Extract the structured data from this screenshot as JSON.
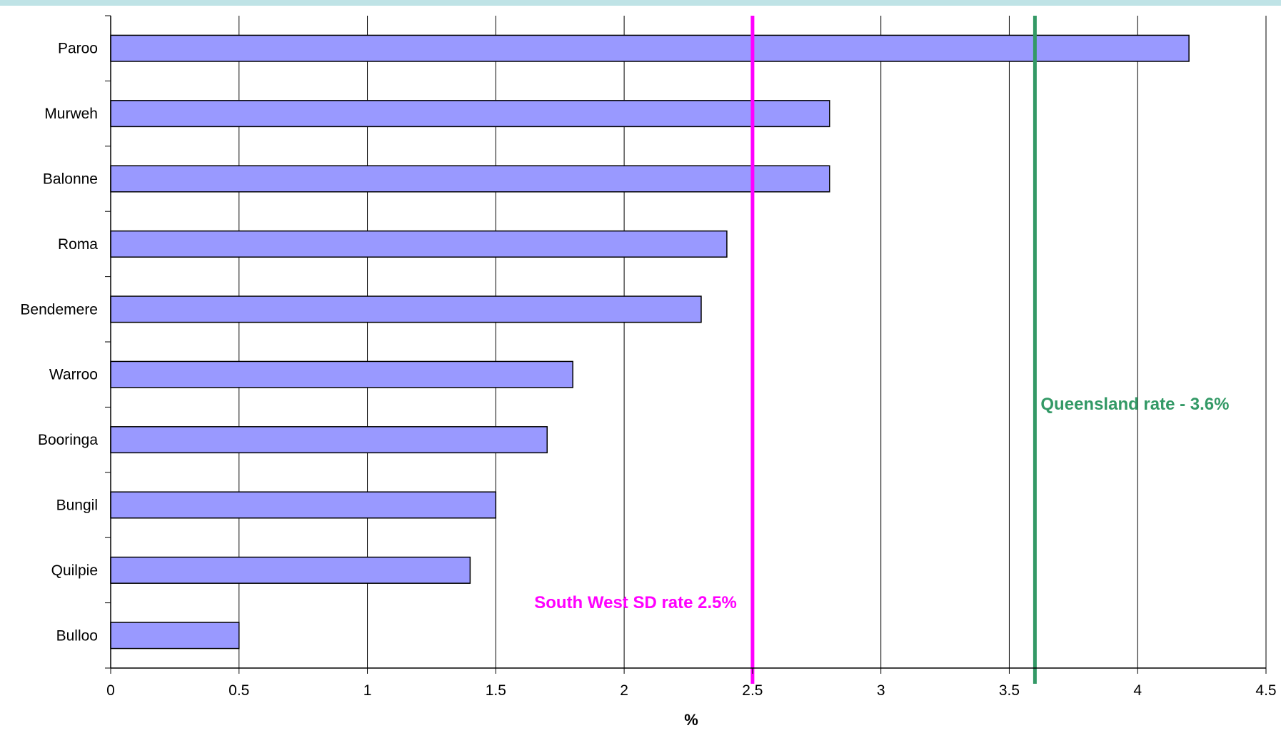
{
  "chart_data": {
    "type": "bar",
    "orientation": "horizontal",
    "categories": [
      "Paroo",
      "Murweh",
      "Balonne",
      "Roma",
      "Bendemere",
      "Warroo",
      "Booringa",
      "Bungil",
      "Quilpie",
      "Bulloo"
    ],
    "values": [
      4.2,
      2.8,
      2.8,
      2.4,
      2.3,
      1.8,
      1.7,
      1.5,
      1.4,
      0.5
    ],
    "xlabel": "%",
    "ylabel": "",
    "xlim": [
      0,
      4.5
    ],
    "xticks": [
      0,
      0.5,
      1,
      1.5,
      2,
      2.5,
      3,
      3.5,
      4,
      4.5
    ],
    "grid": "vertical",
    "bar_color": "#9999ff",
    "reference_lines": [
      {
        "value": 2.5,
        "label": "South West SD rate 2.5%",
        "color": "#ff00ff"
      },
      {
        "value": 3.6,
        "label": "Queensland rate - 3.6%",
        "color": "#339966"
      }
    ]
  },
  "colors": {
    "top_band": "#bfe3e6",
    "grid": "#000000",
    "bar_border": "#000000"
  }
}
